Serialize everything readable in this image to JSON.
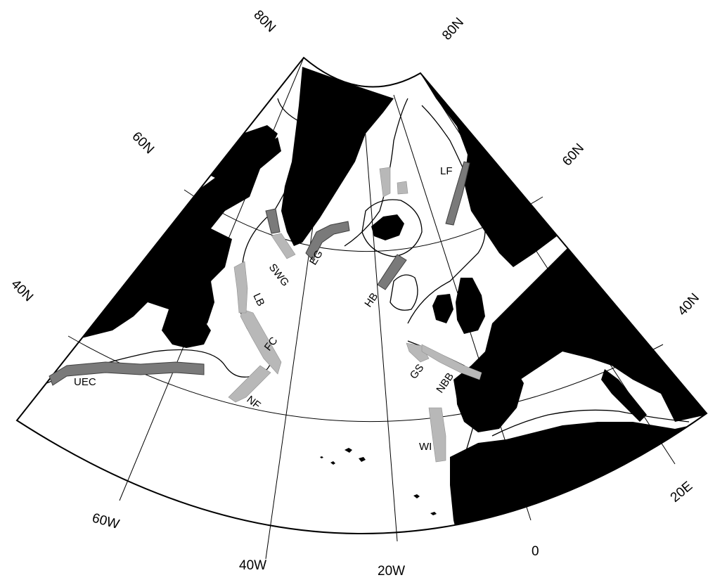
{
  "map": {
    "latitude_labels": {
      "left_80": "80N",
      "right_80": "80N",
      "left_60": "60N",
      "right_60": "60N",
      "left_40": "40N",
      "right_40": "40N"
    },
    "longitude_labels": {
      "w60": "60W",
      "w40": "40W",
      "w20": "20W",
      "zero": "0",
      "e20": "20E"
    },
    "regions": {
      "uec": "UEC",
      "nf": "NF",
      "fc": "FC",
      "lb": "LB",
      "swg": "SWG",
      "eg": "EG",
      "hb": "HB",
      "lf": "LF",
      "gs": "GS",
      "nbb": "NBB",
      "wi": "WI"
    },
    "colors": {
      "land": "#000000",
      "region_dark": "#7a7a7a",
      "region_light": "#b8b8b8"
    }
  }
}
